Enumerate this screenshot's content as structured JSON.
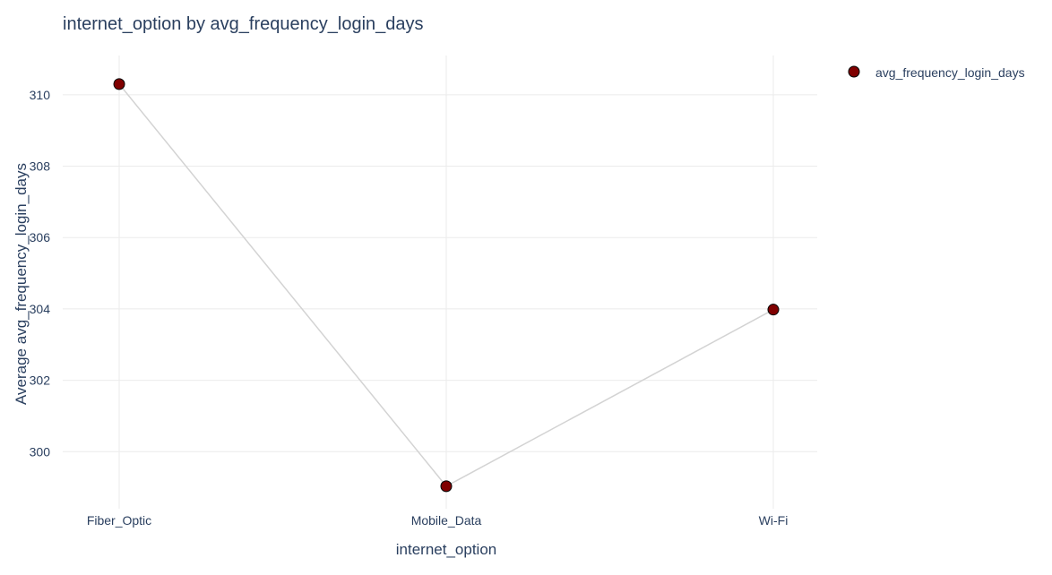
{
  "chart_data": {
    "type": "line",
    "title": "internet_option by avg_frequency_login_days",
    "xlabel": "internet_option",
    "ylabel": "Average avg_frequency_login_days",
    "categories": [
      "Fiber_Optic",
      "Mobile_Data",
      "Wi-Fi"
    ],
    "series": [
      {
        "name": "avg_frequency_login_days",
        "values": [
          310.3,
          299.03,
          303.98
        ],
        "line_color": "#d3d3d3",
        "marker_color": "#800000",
        "marker_outline": "#000000"
      }
    ],
    "yticks": [
      300,
      302,
      304,
      306,
      308,
      310
    ],
    "ylim": [
      298.4,
      311.1
    ],
    "grid": true,
    "legend": "top-right"
  }
}
